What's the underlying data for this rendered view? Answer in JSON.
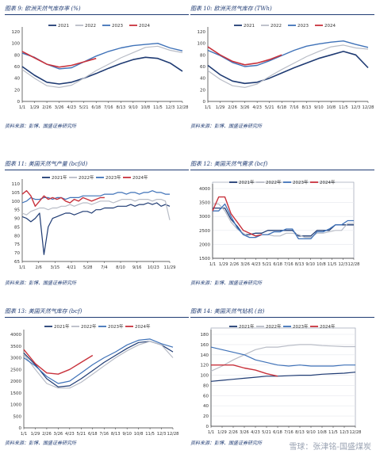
{
  "panels": {
    "p9": {
      "title": "图表 9: 欧洲天然气库存率  (%)",
      "source": "资料来源：彭博、国盛证券研究所"
    },
    "p10": {
      "title": "图表 10: 欧洲天然气库存  (TWh)",
      "source": "资料来源：彭博、国盛证券研究所"
    },
    "p11": {
      "title": "图表 11: 美国天然气产量  (bcf/d)",
      "source": "资料来源：彭博、国盛证券研究所"
    },
    "p12": {
      "title": "图表 12: 美国天然气需求  (bcf)",
      "source": "资料来源：彭博、国盛证券研究所"
    },
    "p13": {
      "title": "图表 13: 美国天然气库存  (bcf)",
      "source": "资料来源：彭博、国盛证券研究所"
    },
    "p14": {
      "title": "图表 14: 美国天然气钻机  (台)",
      "source": "资料来源：彭博、国盛证券研究所"
    }
  },
  "watermark": "雪球：张津铭-国盛煤炭",
  "chart_data": [
    {
      "id": "p9",
      "type": "line",
      "title": "欧洲天然气库存率  (%)",
      "x_labels": [
        "1/1",
        "1/29",
        "2/26",
        "3/26",
        "4/23",
        "5/21",
        "6/18",
        "7/16",
        "8/13",
        "9/10",
        "10/8",
        "11/5",
        "12/3",
        "12/28"
      ],
      "ylim": [
        0,
        120
      ],
      "yticks": [
        0,
        20,
        40,
        60,
        80,
        100,
        120
      ],
      "series": [
        {
          "name": "2021",
          "color": "#1f3b73",
          "width": 1.6,
          "dash": "",
          "values": [
            60,
            45,
            33,
            30,
            33,
            40,
            48,
            57,
            65,
            72,
            76,
            74,
            66,
            52
          ]
        },
        {
          "name": "2022",
          "color": "#b8bcc6",
          "width": 1.2,
          "dash": "",
          "values": [
            55,
            40,
            27,
            24,
            28,
            40,
            53,
            64,
            75,
            84,
            93,
            95,
            88,
            84
          ]
        },
        {
          "name": "2023",
          "color": "#3f72b8",
          "width": 1.4,
          "dash": "",
          "values": [
            83,
            76,
            64,
            56,
            58,
            68,
            78,
            86,
            92,
            96,
            98,
            100,
            92,
            87
          ]
        },
        {
          "name": "2024",
          "color": "#c8323c",
          "width": 1.6,
          "dash": "",
          "values": [
            86,
            75,
            64,
            59,
            62,
            68,
            74,
            null,
            null,
            null,
            null,
            null,
            null,
            null
          ]
        }
      ]
    },
    {
      "id": "p10",
      "type": "line",
      "title": "欧洲天然气库存  (TWh)",
      "x_labels": [
        "1/1",
        "1/29",
        "2/26",
        "3/26",
        "4/23",
        "5/21",
        "6/18",
        "7/16",
        "8/13",
        "9/10",
        "10/8",
        "11/5",
        "12/3",
        "12/28"
      ],
      "ylim": [
        0,
        120
      ],
      "yticks": [
        0,
        20,
        40,
        60,
        80,
        100,
        120
      ],
      "series": [
        {
          "name": "2021",
          "color": "#1f3b73",
          "width": 1.6,
          "dash": "",
          "values": [
            62,
            46,
            35,
            31,
            33,
            40,
            49,
            58,
            66,
            74,
            80,
            86,
            80,
            58
          ]
        },
        {
          "name": "2022",
          "color": "#b8bcc6",
          "width": 1.2,
          "dash": "",
          "values": [
            53,
            38,
            27,
            24,
            30,
            43,
            55,
            66,
            77,
            86,
            94,
            97,
            92,
            90
          ]
        },
        {
          "name": "2023",
          "color": "#3f72b8",
          "width": 1.4,
          "dash": "",
          "values": [
            88,
            79,
            67,
            60,
            62,
            70,
            79,
            88,
            95,
            99,
            102,
            104,
            98,
            93
          ]
        },
        {
          "name": "2024",
          "color": "#c8323c",
          "width": 1.6,
          "dash": "",
          "values": [
            94,
            80,
            69,
            63,
            66,
            72,
            80,
            null,
            null,
            null,
            null,
            null,
            null,
            null
          ]
        }
      ]
    },
    {
      "id": "p11",
      "type": "line",
      "title": "美国天然气产量  (bcf/d)",
      "x_labels": [
        "1/1",
        "2/6",
        "3/15",
        "4/21",
        "5/28",
        "7/4",
        "8/10",
        "9/16",
        "10/23",
        "11/29"
      ],
      "ylim": [
        65,
        110
      ],
      "yticks": [
        65,
        70,
        75,
        80,
        85,
        90,
        95,
        100,
        105,
        110
      ],
      "series": [
        {
          "name": "2021年",
          "color": "#1f3b73",
          "width": 1.2,
          "dash": "",
          "values": [
            91,
            90,
            88,
            90,
            93,
            69,
            85,
            90,
            91,
            92,
            93,
            93,
            92,
            93,
            94,
            94,
            93,
            95,
            95,
            96,
            96,
            96,
            97,
            97,
            97,
            98,
            97,
            98,
            98,
            99,
            98,
            99,
            97,
            98,
            97
          ]
        },
        {
          "name": "2022年",
          "color": "#b8bcc6",
          "width": 1.2,
          "dash": "",
          "values": [
            93,
            92,
            94,
            95,
            96,
            96,
            95,
            96,
            96,
            97,
            97,
            98,
            97,
            98,
            99,
            99,
            98,
            99,
            100,
            100,
            100,
            99,
            100,
            101,
            101,
            101,
            100,
            101,
            101,
            101,
            100,
            101,
            101,
            100,
            89
          ]
        },
        {
          "name": "2023年",
          "color": "#3f72b8",
          "width": 1.2,
          "dash": "",
          "values": [
            99,
            100,
            102,
            101,
            101,
            102,
            102,
            101,
            102,
            102,
            101,
            102,
            102,
            102,
            103,
            103,
            103,
            103,
            103,
            104,
            104,
            104,
            105,
            105,
            104,
            105,
            105,
            104,
            105,
            105,
            106,
            105,
            105,
            104,
            104
          ]
        },
        {
          "name": "2024年",
          "color": "#c8323c",
          "width": 1.4,
          "dash": "",
          "values": [
            104,
            106,
            103,
            97,
            100,
            103,
            101,
            102,
            101,
            102,
            100,
            99,
            101,
            100,
            102,
            101,
            100,
            101,
            102,
            102,
            null,
            null,
            null,
            null,
            null,
            null,
            null,
            null,
            null,
            null,
            null,
            null,
            null,
            null,
            null
          ]
        }
      ]
    },
    {
      "id": "p12",
      "type": "line",
      "title": "美国天然气需求  (bcf)",
      "x_labels": [
        "1/1",
        "1/29",
        "2/26",
        "3/26",
        "4/23",
        "5/21",
        "6/18",
        "7/16",
        "8/13",
        "9/10",
        "10/8",
        "11/5",
        "12/3",
        "12/28"
      ],
      "ylim": [
        1500,
        4000
      ],
      "yticks": [
        1500,
        2000,
        2500,
        3000,
        3500,
        4000
      ],
      "series": [
        {
          "name": "2021年",
          "color": "#1f3b73",
          "width": 1.3,
          "dash": "",
          "values": [
            3300,
            3300,
            3300,
            2900,
            2650,
            2350,
            2350,
            2400,
            2400,
            2500,
            2500,
            2500,
            2500,
            2500,
            2300,
            2300,
            2300,
            2500,
            2500,
            2500,
            2700,
            2700,
            2700,
            2700
          ]
        },
        {
          "name": "2022年",
          "color": "#b8bcc6",
          "width": 1.2,
          "dash": "",
          "values": [
            3450,
            3450,
            3200,
            2800,
            2550,
            2400,
            2250,
            2250,
            2350,
            2350,
            2300,
            2300,
            2400,
            2400,
            2350,
            2250,
            2250,
            2400,
            2400,
            2450,
            2500,
            2500,
            2750,
            2750
          ]
        },
        {
          "name": "2023年",
          "color": "#3f72b8",
          "width": 1.3,
          "dash": "",
          "values": [
            3200,
            3200,
            3450,
            3000,
            2600,
            2350,
            2250,
            2250,
            2350,
            2350,
            2450,
            2450,
            2550,
            2550,
            2200,
            2200,
            2200,
            2450,
            2450,
            2550,
            2700,
            2700,
            2850,
            2850
          ]
        },
        {
          "name": "2024年",
          "color": "#c8323c",
          "width": 1.4,
          "dash": "",
          "values": [
            3200,
            3700,
            3700,
            3100,
            2800,
            2500,
            2400,
            2300,
            2350,
            null,
            null,
            null,
            null,
            null,
            null,
            null,
            null,
            null,
            null,
            null,
            null,
            null,
            null,
            null
          ]
        }
      ]
    },
    {
      "id": "p13",
      "type": "line",
      "title": "美国天然气库存  (bcf)",
      "x_labels": [
        "1/1",
        "1/29",
        "2/26",
        "3/26",
        "4/23",
        "5/21",
        "6/18",
        "7/16",
        "8/13",
        "9/10",
        "10/8",
        "11/5",
        "12/3",
        "12/28"
      ],
      "ylim": [
        0,
        4000
      ],
      "yticks": [
        0,
        500,
        1000,
        1500,
        2000,
        2500,
        3000,
        3500,
        4000
      ],
      "series": [
        {
          "name": "2021年",
          "color": "#1f3b73",
          "width": 1.2,
          "dash": "",
          "values": [
            3200,
            2700,
            2100,
            1750,
            1800,
            2100,
            2450,
            2800,
            3100,
            3400,
            3650,
            3700,
            3550,
            3250
          ]
        },
        {
          "name": "2022年",
          "color": "#b8bcc6",
          "width": 1.2,
          "dash": "",
          "values": [
            3150,
            2500,
            1900,
            1700,
            1700,
            1950,
            2300,
            2650,
            3000,
            3300,
            3550,
            3700,
            3550,
            3000
          ]
        },
        {
          "name": "2023年",
          "color": "#3f72b8",
          "width": 1.2,
          "dash": "",
          "values": [
            3000,
            2650,
            2200,
            1900,
            2000,
            2350,
            2700,
            3000,
            3250,
            3550,
            3750,
            3800,
            3600,
            3450
          ]
        },
        {
          "name": "2024年",
          "color": "#c8323c",
          "width": 1.4,
          "dash": "",
          "values": [
            3350,
            2750,
            2350,
            2300,
            2500,
            2800,
            3100,
            null,
            null,
            null,
            null,
            null,
            null,
            null
          ]
        }
      ]
    },
    {
      "id": "p14",
      "type": "line",
      "title": "美国天然气钻机  (台)",
      "x_labels": [
        "1/1",
        "1/29",
        "2/26",
        "3/26",
        "4/23",
        "5/21",
        "6/18",
        "7/16",
        "8/13",
        "9/10",
        "10/8",
        "11/5",
        "12/3",
        "12/28"
      ],
      "ylim": [
        0,
        180
      ],
      "yticks": [
        0,
        20,
        40,
        60,
        80,
        100,
        120,
        140,
        160,
        180
      ],
      "series": [
        {
          "name": "2021年",
          "color": "#1f3b73",
          "width": 1.2,
          "dash": "",
          "values": [
            88,
            90,
            92,
            94,
            96,
            98,
            98,
            99,
            100,
            100,
            102,
            103,
            104,
            106
          ]
        },
        {
          "name": "2022年",
          "color": "#b8bcc6",
          "width": 1.2,
          "dash": "",
          "values": [
            108,
            118,
            130,
            140,
            150,
            155,
            155,
            158,
            160,
            160,
            158,
            157,
            156,
            156
          ]
        },
        {
          "name": "2023年",
          "color": "#3f72b8",
          "width": 1.2,
          "dash": "",
          "values": [
            155,
            150,
            145,
            140,
            130,
            125,
            120,
            118,
            120,
            118,
            118,
            118,
            120,
            120
          ]
        },
        {
          "name": "2024年",
          "color": "#c8323c",
          "width": 1.4,
          "dash": "",
          "values": [
            120,
            120,
            120,
            114,
            110,
            103,
            98,
            null,
            null,
            null,
            null,
            null,
            null,
            null
          ]
        }
      ]
    }
  ]
}
